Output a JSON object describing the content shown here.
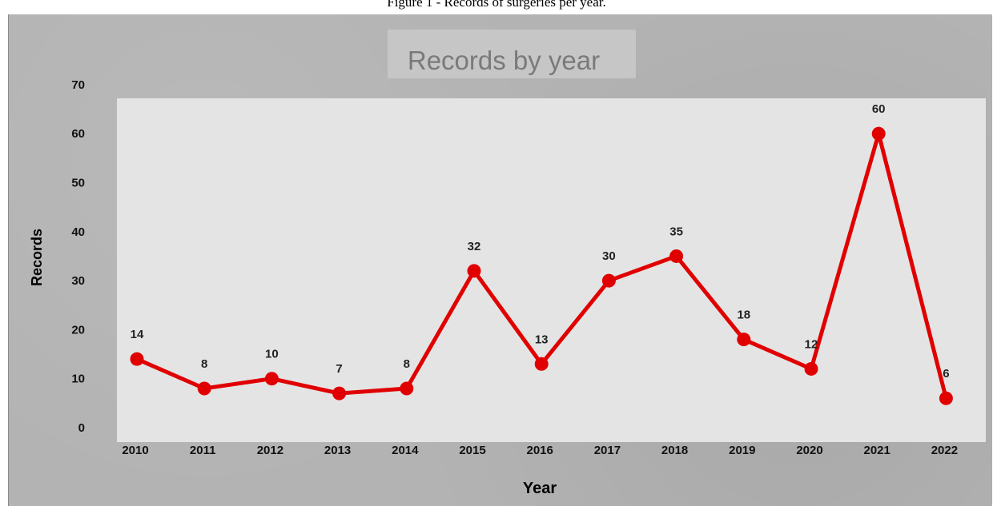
{
  "caption": "Figure 1 - Records of surgeries per year.",
  "chart_data": {
    "type": "line",
    "title": "Records by year",
    "xlabel": "Year",
    "ylabel": "Records",
    "categories": [
      "2010",
      "2011",
      "2012",
      "2013",
      "2014",
      "2015",
      "2016",
      "2017",
      "2018",
      "2019",
      "2020",
      "2021",
      "2022"
    ],
    "series": [
      {
        "values": [
          14,
          8,
          10,
          7,
          8,
          32,
          13,
          30,
          35,
          18,
          12,
          60,
          6
        ],
        "color": "#e00000"
      }
    ],
    "ylim": [
      0,
      70
    ],
    "yticks": [
      "0",
      "10",
      "20",
      "30",
      "40",
      "50",
      "60",
      "70"
    ],
    "data_labels": true,
    "grid": false,
    "legend": "none"
  }
}
